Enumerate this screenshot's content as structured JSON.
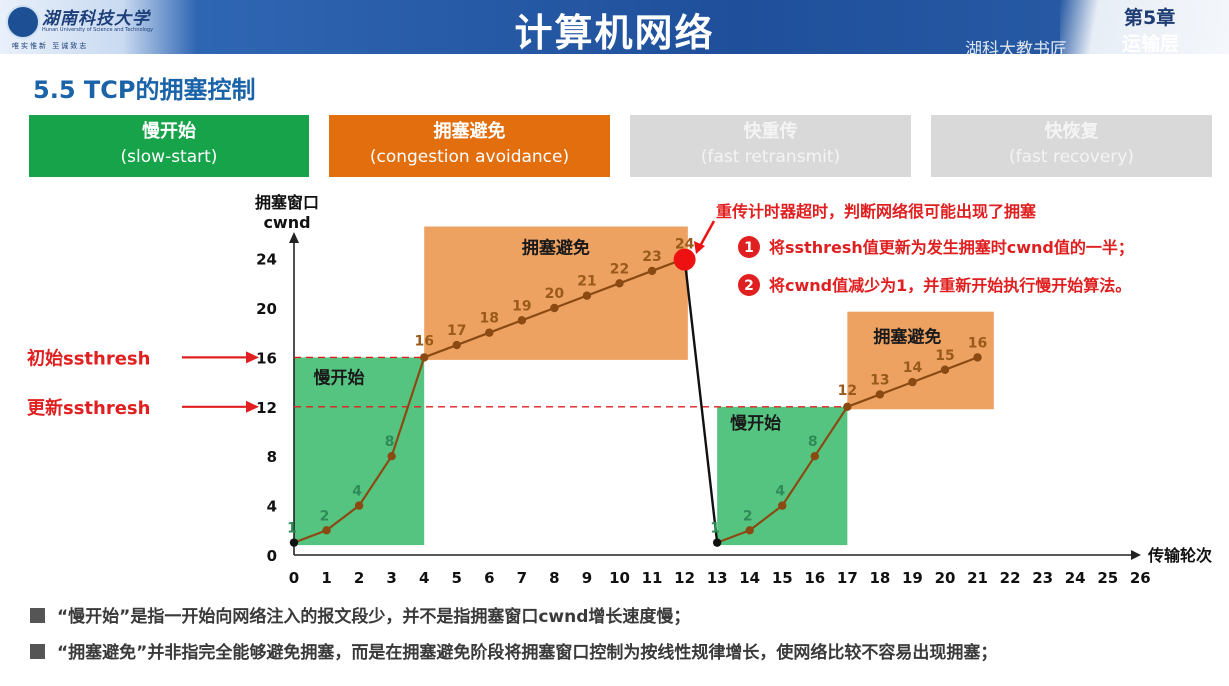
{
  "header": {
    "logo_name": "湖南科技大学",
    "logo_english": "Hunan University of Science and Technology",
    "logo_motto": "唯实惟新  至诚致志",
    "title": "计算机网络",
    "chapter": "第5章",
    "chapter_sub": "运输层",
    "watermark": "湖科大教书匠"
  },
  "section_title": "5.5 TCP的拥塞控制",
  "phases": [
    {
      "name": "慢开始",
      "english": "(slow-start)",
      "color": "#16a34a"
    },
    {
      "name": "拥塞避免",
      "english": "(congestion avoidance)",
      "color": "#e26e0e"
    },
    {
      "name": "快重传",
      "english": "(fast retransmit)",
      "color": "#d9d9d9"
    },
    {
      "name": "快恢复",
      "english": "(fast recovery)",
      "color": "#d9d9d9"
    }
  ],
  "annotation": {
    "timeout_title": "重传计时器超时，判断网络很可能出现了拥塞",
    "step1": "将ssthresh值更新为发生拥塞时cwnd值的一半；",
    "step2": "将cwnd值减少为1，并重新开始执行慢开始算法。",
    "step1_num": "1",
    "step2_num": "2"
  },
  "notes": [
    "“慢开始”是指一开始向网络注入的报文段少，并不是指拥塞窗口cwnd增长速度慢；",
    "“拥塞避免”并非指完全能够避免拥塞，而是在拥塞避免阶段将拥塞窗口控制为按线性规律增长，使网络比较不容易出现拥塞；"
  ],
  "chart_data": {
    "type": "line",
    "title": "",
    "xlabel": "传输轮次",
    "ylabel_line1": "拥塞窗口",
    "ylabel_line2": "cwnd",
    "xlim": [
      0,
      26
    ],
    "ylim": [
      0,
      24
    ],
    "x_ticks": [
      0,
      1,
      2,
      3,
      4,
      5,
      6,
      7,
      8,
      9,
      10,
      11,
      12,
      13,
      14,
      15,
      16,
      17,
      18,
      19,
      20,
      21,
      22,
      23,
      24,
      25,
      26
    ],
    "y_ticks": [
      0,
      4,
      8,
      12,
      16,
      20,
      24
    ],
    "series": [
      {
        "name": "cwnd-phase1",
        "x": [
          0,
          1,
          2,
          3,
          4,
          5,
          6,
          7,
          8,
          9,
          10,
          11,
          12
        ],
        "y": [
          1,
          2,
          4,
          8,
          16,
          17,
          18,
          19,
          20,
          21,
          22,
          23,
          24
        ]
      },
      {
        "name": "cwnd-drop",
        "x": [
          12,
          13
        ],
        "y": [
          24,
          1
        ]
      },
      {
        "name": "cwnd-phase2",
        "x": [
          13,
          14,
          15,
          16,
          17,
          18,
          19,
          20,
          21
        ],
        "y": [
          1,
          2,
          4,
          8,
          12,
          13,
          14,
          15,
          16
        ]
      }
    ],
    "point_labels": [
      {
        "x": 0,
        "y": 1,
        "label": "1",
        "kind": "ss"
      },
      {
        "x": 1,
        "y": 2,
        "label": "2",
        "kind": "ss"
      },
      {
        "x": 2,
        "y": 4,
        "label": "4",
        "kind": "ss"
      },
      {
        "x": 3,
        "y": 8,
        "label": "8",
        "kind": "ss"
      },
      {
        "x": 4,
        "y": 16,
        "label": "16",
        "kind": "ca"
      },
      {
        "x": 5,
        "y": 17,
        "label": "17",
        "kind": "ca"
      },
      {
        "x": 6,
        "y": 18,
        "label": "18",
        "kind": "ca"
      },
      {
        "x": 7,
        "y": 19,
        "label": "19",
        "kind": "ca"
      },
      {
        "x": 8,
        "y": 20,
        "label": "20",
        "kind": "ca"
      },
      {
        "x": 9,
        "y": 21,
        "label": "21",
        "kind": "ca"
      },
      {
        "x": 10,
        "y": 22,
        "label": "22",
        "kind": "ca"
      },
      {
        "x": 11,
        "y": 23,
        "label": "23",
        "kind": "ca"
      },
      {
        "x": 12,
        "y": 24,
        "label": "24",
        "kind": "ca"
      },
      {
        "x": 13,
        "y": 1,
        "label": "1",
        "kind": "ss"
      },
      {
        "x": 14,
        "y": 2,
        "label": "2",
        "kind": "ss"
      },
      {
        "x": 15,
        "y": 4,
        "label": "4",
        "kind": "ss"
      },
      {
        "x": 16,
        "y": 8,
        "label": "8",
        "kind": "ss"
      },
      {
        "x": 17,
        "y": 12,
        "label": "12",
        "kind": "ca"
      },
      {
        "x": 18,
        "y": 13,
        "label": "13",
        "kind": "ca"
      },
      {
        "x": 19,
        "y": 14,
        "label": "14",
        "kind": "ca"
      },
      {
        "x": 20,
        "y": 15,
        "label": "15",
        "kind": "ca"
      },
      {
        "x": 21,
        "y": 16,
        "label": "16",
        "kind": "ca"
      }
    ],
    "thresholds": [
      {
        "y": 16,
        "label": "初始ssthresh",
        "x_end": 4
      },
      {
        "y": 12,
        "label": "更新ssthresh",
        "x_end": 17
      }
    ],
    "regions": [
      {
        "label": "慢开始",
        "x0": 0,
        "x1": 4,
        "y0": 0.8,
        "y1": 16,
        "kind": "ss"
      },
      {
        "label": "拥塞避免",
        "x0": 4,
        "x1": 12.1,
        "y0": 15.8,
        "y1": 26.6,
        "kind": "ca"
      },
      {
        "label": "慢开始",
        "x0": 13,
        "x1": 17,
        "y0": 0.8,
        "y1": 12,
        "kind": "ss"
      },
      {
        "label": "拥塞避免",
        "x0": 17,
        "x1": 21.5,
        "y0": 11.8,
        "y1": 19.7,
        "kind": "ca"
      }
    ],
    "congestion_event": {
      "x": 12,
      "y": 24
    },
    "colors": {
      "ss_fill": "#55c481",
      "ca_fill": "#eda262",
      "ss_label": "#2e8b57",
      "ca_label": "#9a5a1a",
      "line": "#8a4a12",
      "threshold": "#e02020",
      "axis": "#222222",
      "event": "#ee1111",
      "badge": "#e02020",
      "annotation_text": "#e02020"
    }
  }
}
